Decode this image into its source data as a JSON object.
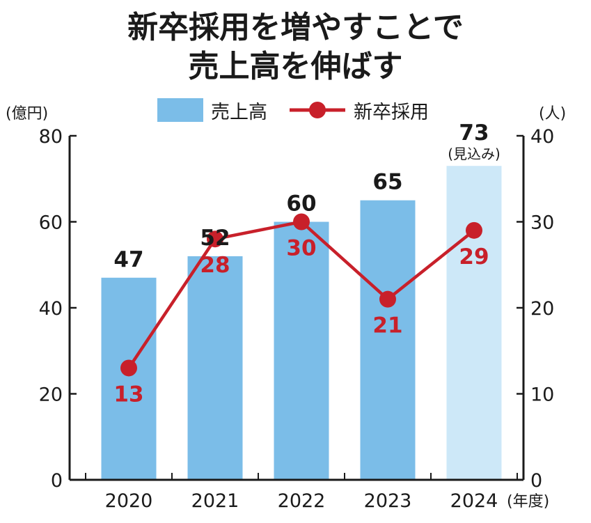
{
  "title": {
    "line1": "新卒採用を増やすことで",
    "line2": "売上高を伸ばす"
  },
  "legend": {
    "bar_label": "売上高",
    "line_label": "新卒採用"
  },
  "axes": {
    "left_unit": "(億円)",
    "right_unit": "(人)",
    "x_unit": "(年度)"
  },
  "chart_data": {
    "type": "bar",
    "categories": [
      "2020",
      "2021",
      "2022",
      "2023",
      "2024"
    ],
    "series": [
      {
        "name": "売上高",
        "type": "bar",
        "axis": "left",
        "values": [
          47,
          52,
          60,
          65,
          73
        ],
        "data_labels": [
          "47",
          "52",
          "60",
          "65",
          "73"
        ],
        "notes": [
          "",
          "",
          "",
          "",
          "(見込み)"
        ]
      },
      {
        "name": "新卒採用",
        "type": "line",
        "axis": "right",
        "values": [
          13,
          28,
          30,
          21,
          29
        ],
        "data_labels": [
          "13",
          "28",
          "30",
          "21",
          "29"
        ]
      }
    ],
    "left_axis": {
      "ylim": [
        0,
        80
      ],
      "ticks": [
        "0",
        "20",
        "40",
        "60",
        "80"
      ]
    },
    "right_axis": {
      "ylim": [
        0,
        40
      ],
      "ticks": [
        "0",
        "10",
        "20",
        "30",
        "40"
      ]
    },
    "grid": false,
    "legend_position": "top-center"
  },
  "colors": {
    "bar": "#7bbde8",
    "bar_forecast": "#cde8f8",
    "line": "#c8202a",
    "axis": "#1a1a1a"
  }
}
